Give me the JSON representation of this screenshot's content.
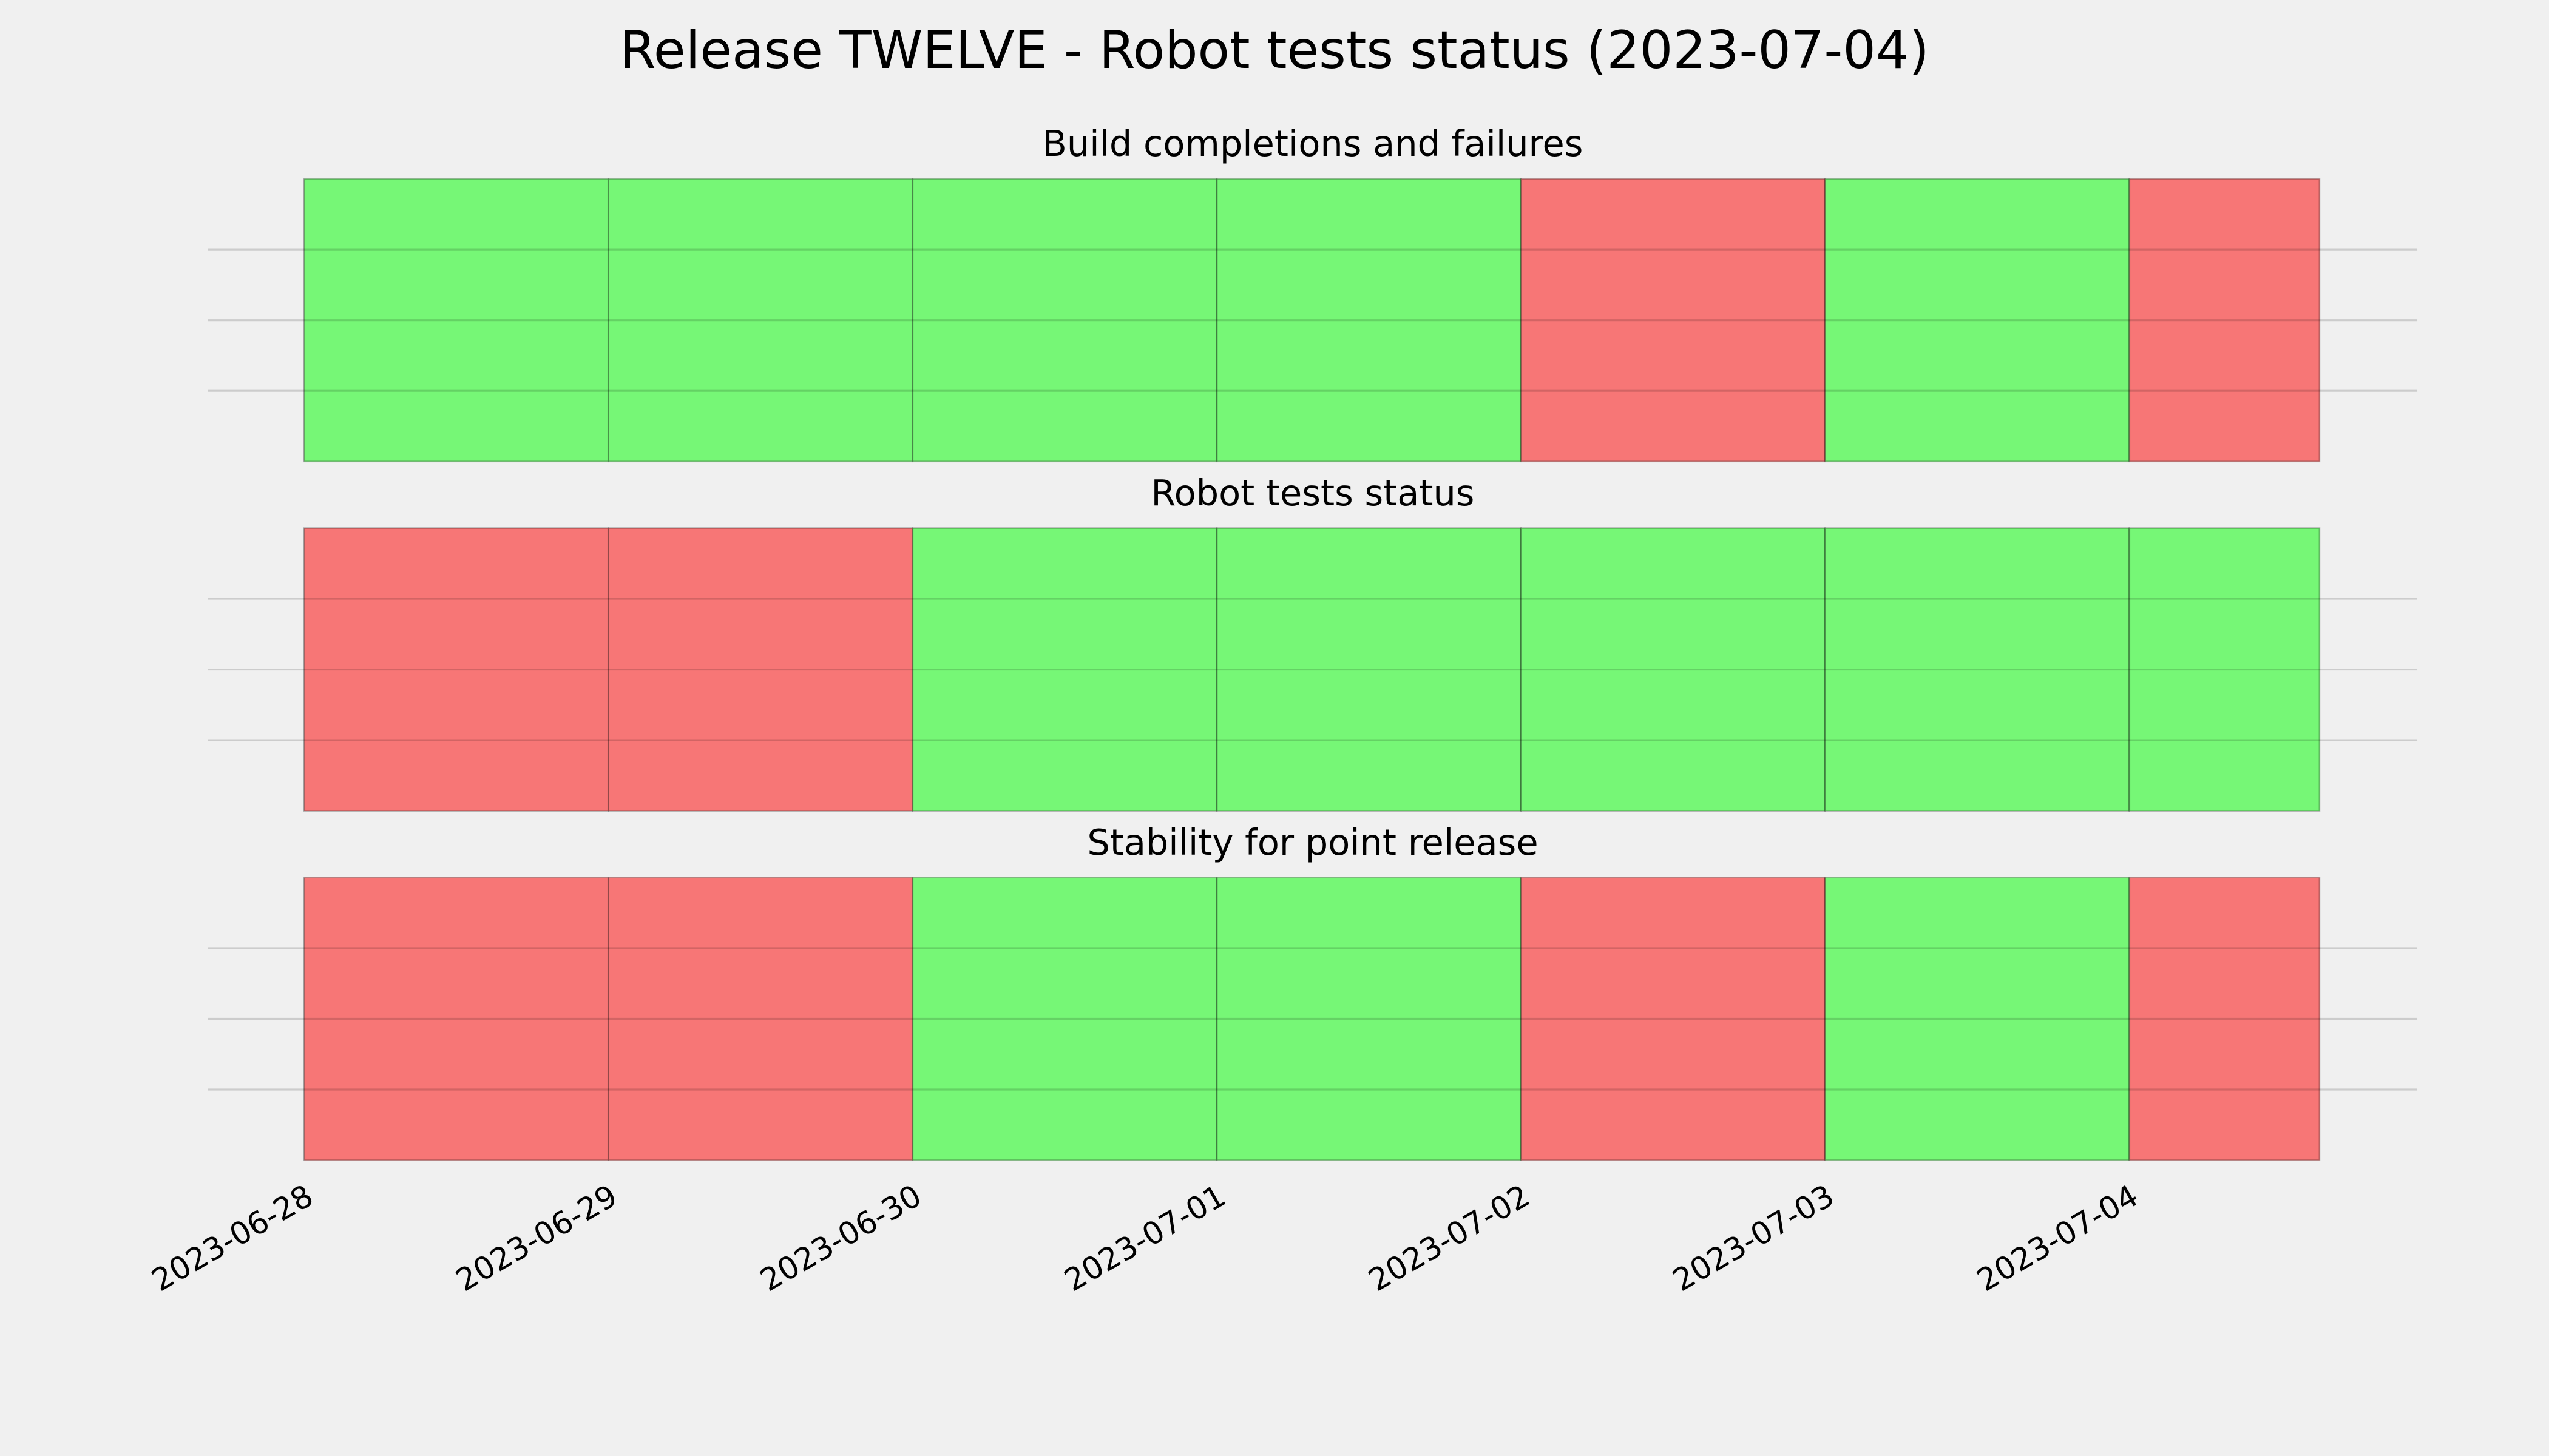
{
  "title": "Release TWELVE - Robot tests status (2023-07-04)",
  "chart_data": [
    {
      "type": "timeline",
      "title": "Build completions and failures",
      "x": [
        "2023-06-28",
        "2023-06-29",
        "2023-06-30",
        "2023-07-01",
        "2023-07-02",
        "2023-07-03",
        "2023-07-04"
      ],
      "x_end": "2023-07-04T15:00",
      "colors": [
        "#76f776",
        "#76f776",
        "#76f776",
        "#76f776",
        "#f77676",
        "#76f776",
        "#f77676"
      ],
      "xlim": [
        "2023-06-27T16:25",
        "2023-07-04T22:43"
      ],
      "xticks": [
        "2023-06-28",
        "2023-06-29",
        "2023-06-30",
        "2023-07-01",
        "2023-07-02",
        "2023-07-03",
        "2023-07-04"
      ],
      "ylim": [
        0,
        4
      ],
      "yticks": [
        1,
        2,
        3
      ],
      "grid": true
    },
    {
      "type": "timeline",
      "title": "Robot tests status",
      "x": [
        "2023-06-28",
        "2023-06-29",
        "2023-06-30",
        "2023-07-01",
        "2023-07-02",
        "2023-07-03",
        "2023-07-04"
      ],
      "x_end": "2023-07-04T15:00",
      "colors": [
        "#f77676",
        "#f77676",
        "#76f776",
        "#76f776",
        "#76f776",
        "#76f776",
        "#76f776"
      ],
      "xlim": [
        "2023-06-27T16:25",
        "2023-07-04T22:43"
      ],
      "xticks": [
        "2023-06-28",
        "2023-06-29",
        "2023-06-30",
        "2023-07-01",
        "2023-07-02",
        "2023-07-03",
        "2023-07-04"
      ],
      "ylim": [
        0,
        4
      ],
      "yticks": [
        1,
        2,
        3
      ],
      "grid": true
    },
    {
      "type": "timeline",
      "title": "Stability for point release",
      "x": [
        "2023-06-28",
        "2023-06-29",
        "2023-06-30",
        "2023-07-01",
        "2023-07-02",
        "2023-07-03",
        "2023-07-04"
      ],
      "x_end": "2023-07-04T15:00",
      "colors": [
        "#f77676",
        "#f77676",
        "#76f776",
        "#76f776",
        "#f77676",
        "#76f776",
        "#f77676"
      ],
      "xlim": [
        "2023-06-27T16:25",
        "2023-07-04T22:43"
      ],
      "xticks": [
        "2023-06-28",
        "2023-06-29",
        "2023-06-30",
        "2023-07-01",
        "2023-07-02",
        "2023-07-03",
        "2023-07-04"
      ],
      "ylim": [
        0,
        4
      ],
      "yticks": [
        1,
        2,
        3
      ],
      "grid": true
    }
  ]
}
